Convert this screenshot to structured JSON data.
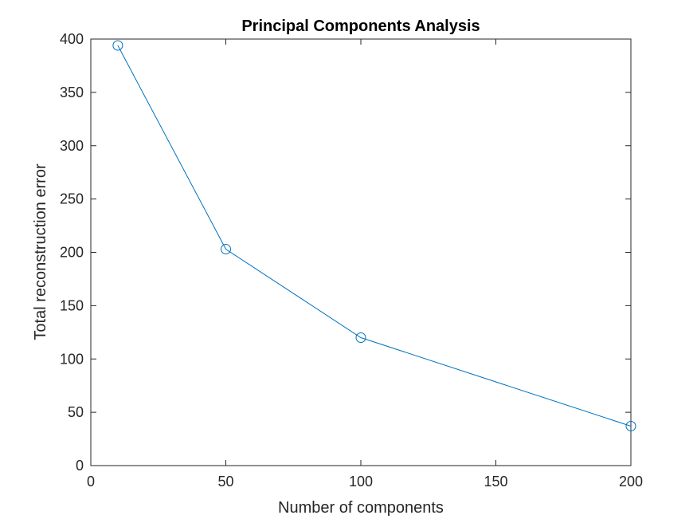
{
  "chart_data": {
    "type": "line",
    "title": "Principal Components Analysis",
    "xlabel": "Number of components",
    "ylabel": "Total reconstruction error",
    "xlim": [
      0,
      200
    ],
    "ylim": [
      0,
      400
    ],
    "xticks": [
      0,
      50,
      100,
      150,
      200
    ],
    "yticks": [
      0,
      50,
      100,
      150,
      200,
      250,
      300,
      350,
      400
    ],
    "grid": false,
    "legend": "none",
    "series": [
      {
        "x": [
          10,
          50,
          100,
          200
        ],
        "y": [
          394,
          203,
          120,
          37
        ],
        "color": "#0072BD",
        "marker": "circle"
      }
    ]
  }
}
